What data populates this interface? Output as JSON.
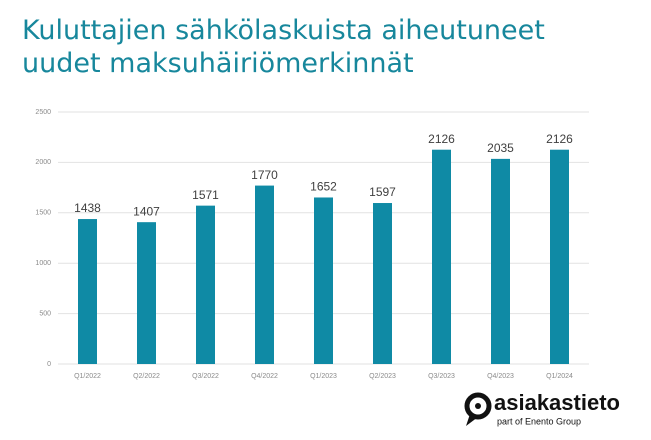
{
  "chart_data": {
    "type": "bar",
    "title": "Kuluttajien sähkölaskuista aiheutuneet uudet maksuhäiriömerkinnät",
    "categories": [
      "Q1/2022",
      "Q2/2022",
      "Q3/2022",
      "Q4/2022",
      "Q1/2023",
      "Q2/2023",
      "Q3/2023",
      "Q4/2023",
      "Q1/2024"
    ],
    "values": [
      1438,
      1407,
      1571,
      1770,
      1652,
      1597,
      2126,
      2035,
      2126
    ],
    "color": "#0f8aa5",
    "ylim": [
      0,
      2500
    ],
    "yticks": [
      0,
      500,
      1000,
      1500,
      2000,
      2500
    ],
    "grid": true
  },
  "footer": {
    "brand": "asiakastieto",
    "tagline": "part of Enento Group"
  }
}
